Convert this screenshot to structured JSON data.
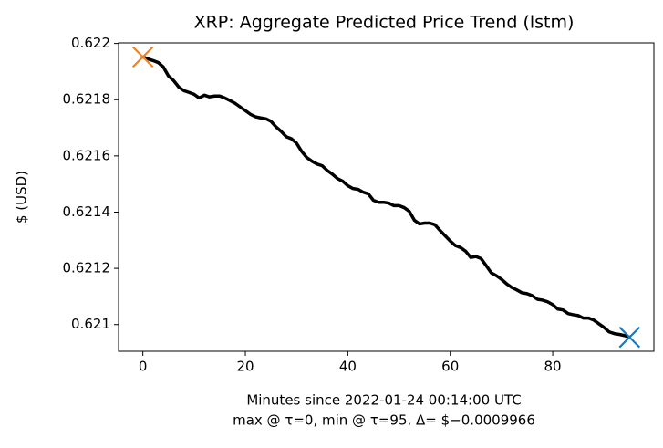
{
  "chart_data": {
    "type": "line",
    "title": "XRP: Aggregate Predicted Price Trend (lstm)",
    "ylabel": "$ (USD)",
    "xlabel": "Minutes since 2022-01-24 00:14:00 UTC",
    "xlabel_note": "max @ τ=0, min @ τ=95. Δ= $−0.0009966",
    "x": [
      0,
      1,
      2,
      3,
      4,
      5,
      6,
      7,
      8,
      9,
      10,
      11,
      12,
      13,
      14,
      15,
      16,
      17,
      18,
      19,
      20,
      21,
      22,
      23,
      24,
      25,
      26,
      27,
      28,
      29,
      30,
      31,
      32,
      33,
      34,
      35,
      36,
      37,
      38,
      39,
      40,
      41,
      42,
      43,
      44,
      45,
      46,
      47,
      48,
      49,
      50,
      51,
      52,
      53,
      54,
      55,
      56,
      57,
      58,
      59,
      60,
      61,
      62,
      63,
      64,
      65,
      66,
      67,
      68,
      69,
      70,
      71,
      72,
      73,
      74,
      75,
      76,
      77,
      78,
      79,
      80,
      81,
      82,
      83,
      84,
      85,
      86,
      87,
      88,
      89,
      90,
      91,
      92,
      93,
      94,
      95
    ],
    "series": [
      {
        "color": "#000000",
        "values": [
          0.621952,
          0.621945,
          0.621939,
          0.621932,
          0.621916,
          0.621884,
          0.621868,
          0.621845,
          0.621832,
          0.621826,
          0.621819,
          0.621806,
          0.621816,
          0.62181,
          0.621813,
          0.621813,
          0.621806,
          0.621797,
          0.621787,
          0.621774,
          0.621761,
          0.621748,
          0.621739,
          0.621735,
          0.621732,
          0.621723,
          0.621703,
          0.621687,
          0.621668,
          0.621661,
          0.621645,
          0.621616,
          0.621594,
          0.621581,
          0.621571,
          0.621565,
          0.621548,
          0.621535,
          0.621519,
          0.62151,
          0.621494,
          0.621484,
          0.621481,
          0.621471,
          0.621465,
          0.621442,
          0.621435,
          0.621435,
          0.621432,
          0.621423,
          0.621423,
          0.621416,
          0.621403,
          0.621371,
          0.621358,
          0.621361,
          0.621361,
          0.621355,
          0.621335,
          0.621316,
          0.621297,
          0.621281,
          0.621274,
          0.621261,
          0.621239,
          0.621242,
          0.621235,
          0.62121,
          0.621184,
          0.621174,
          0.621161,
          0.621145,
          0.621132,
          0.621123,
          0.621113,
          0.62111,
          0.621103,
          0.62109,
          0.621087,
          0.621081,
          0.621071,
          0.621055,
          0.621052,
          0.621039,
          0.621035,
          0.621032,
          0.621023,
          0.621023,
          0.621016,
          0.621003,
          0.62099,
          0.620974,
          0.620968,
          0.620965,
          0.620961,
          0.620955
        ]
      }
    ],
    "markers": [
      {
        "index": 0,
        "color": "#ff7f0e"
      },
      {
        "index": 95,
        "color": "#1f77b4"
      }
    ],
    "xlim": [
      -4.75,
      99.75
    ],
    "xticks": [
      0,
      20,
      40,
      60,
      80
    ],
    "ylim": [
      0.620905,
      0.622002
    ],
    "yticks": [
      0.621,
      0.6212,
      0.6214,
      0.6216,
      0.6218,
      0.622
    ],
    "grid": false
  }
}
